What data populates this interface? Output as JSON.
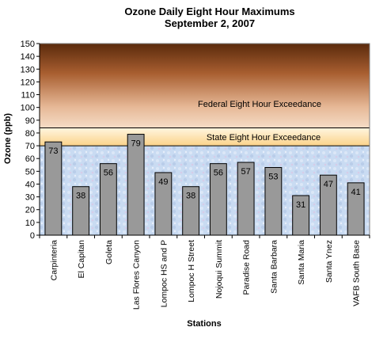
{
  "chart_data": {
    "type": "bar",
    "title": "Ozone Daily Eight Hour Maximums",
    "subtitle": "September 2, 2007",
    "xlabel": "Stations",
    "ylabel": "Ozone (ppb)",
    "ylim": [
      0,
      150
    ],
    "yticks": [
      0,
      10,
      20,
      30,
      40,
      50,
      60,
      70,
      80,
      90,
      100,
      110,
      120,
      130,
      140,
      150
    ],
    "categories": [
      "Carpinteria",
      "El Capitan",
      "Goleta",
      "Las Flores Canyon",
      "Lompoc HS and P",
      "Lompoc H Street",
      "Nojoqui Summit",
      "Paradise Road",
      "Santa Barbara",
      "Santa Maria",
      "Santa Ynez",
      "VAFB South Base"
    ],
    "values": [
      73,
      38,
      56,
      79,
      49,
      38,
      56,
      57,
      53,
      31,
      47,
      41
    ],
    "bands": [
      {
        "label": "",
        "from": 0,
        "to": 70,
        "color": "#c8daf0"
      },
      {
        "label": "State Eight Hour Exceedance",
        "from": 70,
        "to": 84,
        "color": "#fce0b0"
      },
      {
        "label": "Federal Eight Hour Exceedance",
        "from": 84,
        "to": 150,
        "color": "#b8764a"
      }
    ],
    "bar_color": "#999999",
    "grid": false,
    "legend": "none"
  }
}
